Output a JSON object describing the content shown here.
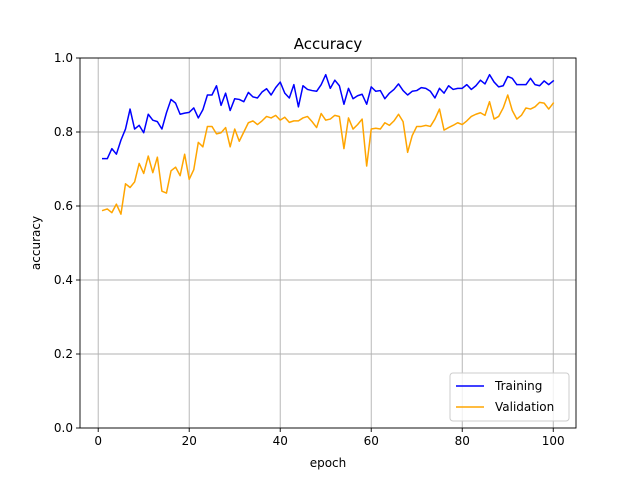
{
  "chart_data": {
    "type": "line",
    "title": "Accuracy",
    "xlabel": "epoch",
    "ylabel": "accuracy",
    "xlim": [
      -4,
      105
    ],
    "ylim": [
      0,
      1.0
    ],
    "xticks": [
      0,
      20,
      40,
      60,
      80,
      100
    ],
    "yticks": [
      0.0,
      0.2,
      0.4,
      0.6,
      0.8,
      1.0
    ],
    "xtick_labels": [
      "0",
      "20",
      "40",
      "60",
      "80",
      "100"
    ],
    "ytick_labels": [
      "0.0",
      "0.2",
      "0.4",
      "0.6",
      "0.8",
      "1.0"
    ],
    "grid": true,
    "legend_position": "lower-right",
    "series": [
      {
        "name": "Training",
        "color": "#0000ff",
        "x": [
          1,
          2,
          3,
          4,
          5,
          6,
          7,
          8,
          9,
          10,
          11,
          12,
          13,
          14,
          15,
          16,
          17,
          18,
          19,
          20,
          21,
          22,
          23,
          24,
          25,
          26,
          27,
          28,
          29,
          30,
          31,
          32,
          33,
          34,
          35,
          36,
          37,
          38,
          39,
          40,
          41,
          42,
          43,
          44,
          45,
          46,
          47,
          48,
          49,
          50,
          51,
          52,
          53,
          54,
          55,
          56,
          57,
          58,
          59,
          60,
          61,
          62,
          63,
          64,
          65,
          66,
          67,
          68,
          69,
          70,
          71,
          72,
          73,
          74,
          75,
          76,
          77,
          78,
          79,
          80,
          81,
          82,
          83,
          84,
          85,
          86,
          87,
          88,
          89,
          90,
          91,
          92,
          93,
          94,
          95,
          96,
          97,
          98,
          99,
          100
        ],
        "values": [
          0.728,
          0.728,
          0.755,
          0.74,
          0.778,
          0.808,
          0.862,
          0.808,
          0.818,
          0.798,
          0.848,
          0.832,
          0.828,
          0.808,
          0.852,
          0.888,
          0.878,
          0.848,
          0.851,
          0.853,
          0.865,
          0.838,
          0.86,
          0.9,
          0.9,
          0.925,
          0.872,
          0.905,
          0.858,
          0.89,
          0.888,
          0.882,
          0.907,
          0.895,
          0.892,
          0.908,
          0.917,
          0.9,
          0.92,
          0.935,
          0.905,
          0.892,
          0.928,
          0.868,
          0.925,
          0.915,
          0.912,
          0.91,
          0.928,
          0.955,
          0.918,
          0.94,
          0.925,
          0.875,
          0.918,
          0.89,
          0.898,
          0.902,
          0.875,
          0.922,
          0.91,
          0.912,
          0.89,
          0.905,
          0.915,
          0.93,
          0.912,
          0.9,
          0.91,
          0.912,
          0.92,
          0.918,
          0.91,
          0.892,
          0.918,
          0.905,
          0.925,
          0.915,
          0.918,
          0.918,
          0.928,
          0.915,
          0.925,
          0.94,
          0.93,
          0.955,
          0.935,
          0.922,
          0.925,
          0.95,
          0.945,
          0.928,
          0.928,
          0.928,
          0.945,
          0.928,
          0.925,
          0.938,
          0.928,
          0.938
        ]
      },
      {
        "name": "Validation",
        "color": "#ffa500",
        "x": [
          1,
          2,
          3,
          4,
          5,
          6,
          7,
          8,
          9,
          10,
          11,
          12,
          13,
          14,
          15,
          16,
          17,
          18,
          19,
          20,
          21,
          22,
          23,
          24,
          25,
          26,
          27,
          28,
          29,
          30,
          31,
          32,
          33,
          34,
          35,
          36,
          37,
          38,
          39,
          40,
          41,
          42,
          43,
          44,
          45,
          46,
          47,
          48,
          49,
          50,
          51,
          52,
          53,
          54,
          55,
          56,
          57,
          58,
          59,
          60,
          61,
          62,
          63,
          64,
          65,
          66,
          67,
          68,
          69,
          70,
          71,
          72,
          73,
          74,
          75,
          76,
          77,
          78,
          79,
          80,
          81,
          82,
          83,
          84,
          85,
          86,
          87,
          88,
          89,
          90,
          91,
          92,
          93,
          94,
          95,
          96,
          97,
          98,
          99,
          100
        ],
        "values": [
          0.588,
          0.592,
          0.582,
          0.605,
          0.578,
          0.66,
          0.65,
          0.665,
          0.715,
          0.688,
          0.735,
          0.69,
          0.732,
          0.64,
          0.635,
          0.695,
          0.705,
          0.682,
          0.74,
          0.672,
          0.698,
          0.772,
          0.76,
          0.815,
          0.815,
          0.795,
          0.798,
          0.812,
          0.76,
          0.808,
          0.775,
          0.8,
          0.825,
          0.83,
          0.82,
          0.83,
          0.842,
          0.838,
          0.845,
          0.832,
          0.84,
          0.826,
          0.83,
          0.83,
          0.838,
          0.842,
          0.828,
          0.812,
          0.85,
          0.832,
          0.835,
          0.845,
          0.842,
          0.755,
          0.838,
          0.808,
          0.82,
          0.835,
          0.708,
          0.808,
          0.81,
          0.808,
          0.825,
          0.818,
          0.83,
          0.848,
          0.828,
          0.745,
          0.79,
          0.815,
          0.815,
          0.818,
          0.815,
          0.835,
          0.862,
          0.805,
          0.812,
          0.818,
          0.825,
          0.82,
          0.83,
          0.842,
          0.848,
          0.852,
          0.845,
          0.882,
          0.835,
          0.842,
          0.865,
          0.9,
          0.858,
          0.835,
          0.845,
          0.865,
          0.862,
          0.868,
          0.88,
          0.878,
          0.862,
          0.878
        ]
      }
    ]
  }
}
